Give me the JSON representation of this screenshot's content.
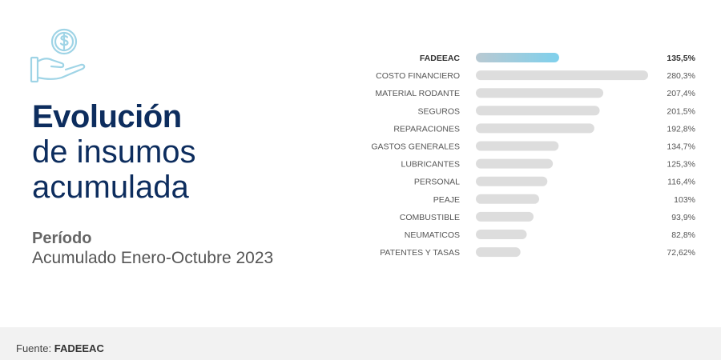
{
  "header": {
    "icon": "hand-with-dollar-coin-icon",
    "title_line1": "Evolución",
    "title_line2": "de insumos",
    "title_line3": "acumulada",
    "periodo_label": "Período",
    "periodo_value": "Acumulado Enero-Octubre  2023"
  },
  "colors": {
    "title": "#0d2d5e",
    "highlight_bar": "#7fd0ec",
    "bar": "#dddddd",
    "icon": "#9fd4e6"
  },
  "chart_data": {
    "type": "bar",
    "orientation": "horizontal",
    "categories": [
      "FADEEAC",
      "COSTO FINANCIERO",
      "MATERIAL RODANTE",
      "SEGUROS",
      "REPARACIONES",
      "GASTOS GENERALES",
      "LUBRICANTES",
      "PERSONAL",
      "PEAJE",
      "COMBUSTIBLE",
      "NEUMATICOS",
      "PATENTES Y TASAS"
    ],
    "values": [
      135.5,
      280.3,
      207.4,
      201.5,
      192.8,
      134.7,
      125.3,
      116.4,
      103,
      93.9,
      82.8,
      72.62
    ],
    "value_labels": [
      "135,5%",
      "280,3%",
      "207,4%",
      "201,5%",
      "192,8%",
      "134,7%",
      "125,3%",
      "116,4%",
      "103%",
      "93,9%",
      "82,8%",
      "72,62%"
    ],
    "highlighted_category": "FADEEAC",
    "grid": false,
    "legend": "none"
  },
  "footer": {
    "source_label": "Fuente:",
    "source_value": "FADEEAC"
  }
}
